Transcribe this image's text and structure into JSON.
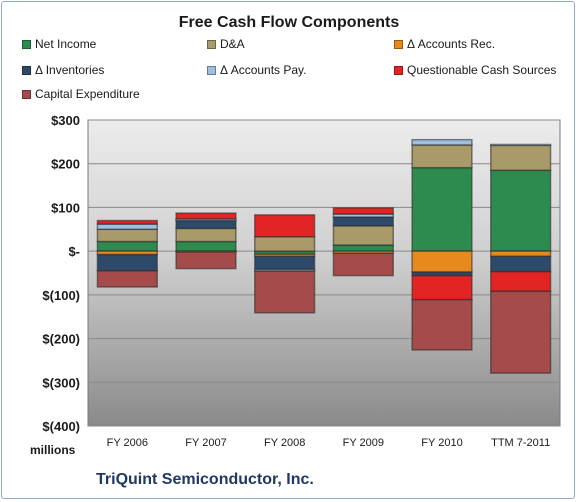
{
  "chart_data": {
    "type": "bar",
    "stacked": true,
    "title": "Free Cash Flow Components",
    "subtitle": "",
    "xlabel": "",
    "ylabel": "",
    "unit_label": "millions",
    "footer": "TriQuint Semiconductor, Inc.",
    "ylim": [
      -400,
      300
    ],
    "yticks": [
      300,
      200,
      100,
      0,
      -100,
      -200,
      -300,
      -400
    ],
    "ytick_labels": [
      "$300",
      "$200",
      "$100",
      "$-",
      "$(100)",
      "$(200)",
      "$(300)",
      "$(400)"
    ],
    "grid": true,
    "legend_position": "top",
    "categories": [
      "FY 2006",
      "FY 2007",
      "FY 2008",
      "FY 2009",
      "FY 2010",
      "TTM 7-2011"
    ],
    "series": [
      {
        "name": "Net Income",
        "color": "#2e8b4f",
        "values": [
          22,
          22,
          -7,
          14,
          191,
          185
        ]
      },
      {
        "name": "D&A",
        "color": "#a99b69",
        "values": [
          28,
          30,
          33,
          44,
          52,
          57
        ]
      },
      {
        "name": "Δ Accounts Rec.",
        "color": "#e8891e",
        "values": [
          -8,
          -2,
          -5,
          -5,
          -48,
          -12
        ]
      },
      {
        "name": "Δ Inventories",
        "color": "#2e4a6b",
        "values": [
          -37,
          18,
          -30,
          20,
          -8,
          -35
        ]
      },
      {
        "name": "Δ Accounts Pay.",
        "color": "#9fbfe0",
        "values": [
          12,
          4,
          -4,
          7,
          12,
          2
        ]
      },
      {
        "name": "Questionable Cash Sources",
        "color": "#e32424",
        "values": [
          8,
          13,
          50,
          14,
          -55,
          -45
        ]
      },
      {
        "name": "Capital Expenditure",
        "color": "#a64b4b",
        "values": [
          -37,
          -38,
          -95,
          -51,
          -115,
          -187
        ]
      }
    ]
  }
}
